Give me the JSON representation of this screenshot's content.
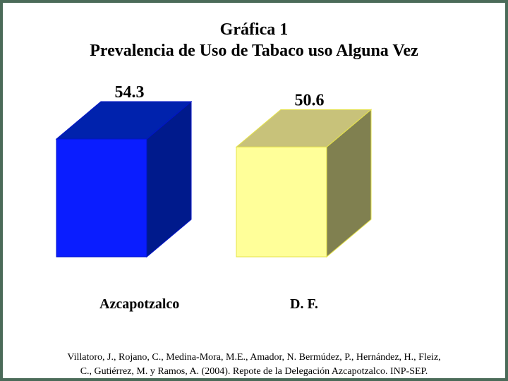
{
  "colors": {
    "frame": "#4b6b59",
    "series": [
      {
        "front": "#0a1dff",
        "side": "#001a8c",
        "top": "#0022ad",
        "edge": "#0014c8"
      },
      {
        "front": "#ffff99",
        "side": "#808050",
        "top": "#c8c27a",
        "edge": "#e6e34a"
      }
    ]
  },
  "chart_data": {
    "type": "bar",
    "title_line1": "Gráfica 1",
    "title_line2": "Prevalencia de Uso de Tabaco uso Alguna Vez",
    "categories": [
      "Azcapotzalco",
      "D. F."
    ],
    "values": [
      54.3,
      50.6
    ],
    "data_labels": [
      "54.3",
      "50.6"
    ],
    "style": "3d-box",
    "legend": "none",
    "grid": false
  },
  "citation": {
    "line1": "Villatoro, J., Rojano, C., Medina-Mora, M.E., Amador, N. Bermúdez, P., Hernández, H., Fleiz,",
    "line2": "C., Gutiérrez, M. y Ramos, A. (2004). Repote de la Delegación Azcapotzalco. INP-SEP."
  }
}
